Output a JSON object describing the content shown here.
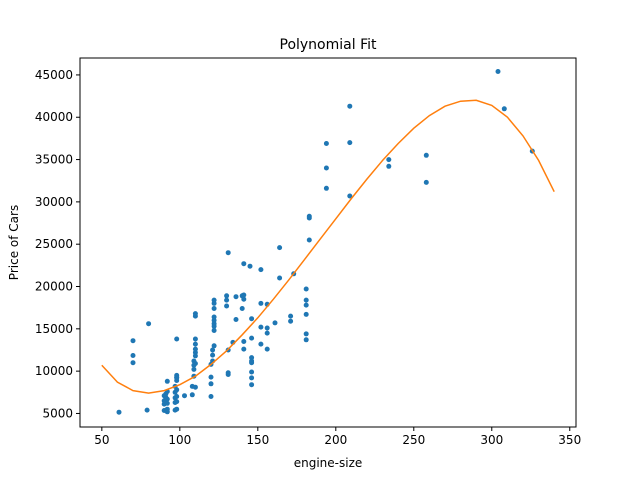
{
  "chart_data": {
    "type": "scatter",
    "title": "Polynomial Fit",
    "xlabel": "engine-size",
    "ylabel": "Price of Cars",
    "xlim": [
      36,
      354
    ],
    "ylim": [
      3400,
      47000
    ],
    "xticks": [
      50,
      100,
      150,
      200,
      250,
      300,
      350
    ],
    "yticks": [
      5000,
      10000,
      15000,
      20000,
      25000,
      30000,
      35000,
      40000,
      45000
    ],
    "grid": false,
    "legend": "none",
    "colors": {
      "points": "#1f77b4",
      "fit": "#ff7f0e"
    },
    "series": [
      {
        "kind": "points",
        "x": [
          61,
          70,
          70,
          70,
          79,
          80,
          90,
          90,
          90,
          90,
          91,
          91,
          92,
          92,
          92,
          92,
          92,
          92,
          97,
          97,
          97,
          97,
          97,
          98,
          98,
          98,
          98,
          98,
          98,
          98,
          98,
          98,
          103,
          108,
          108,
          109,
          109,
          109,
          109,
          110,
          110,
          110,
          110,
          110,
          110,
          110,
          110,
          110,
          120,
          120,
          120,
          120,
          121,
          121,
          121,
          122,
          122,
          122,
          122,
          122,
          122,
          122,
          122,
          122,
          130,
          130,
          130,
          131,
          131,
          131,
          131,
          134,
          136,
          136,
          140,
          140,
          141,
          141,
          141,
          141,
          141,
          145,
          146,
          146,
          146,
          146,
          146,
          146,
          146,
          146,
          152,
          152,
          152,
          152,
          156,
          156,
          156,
          156,
          161,
          164,
          164,
          171,
          171,
          173,
          181,
          181,
          181,
          181,
          181,
          181,
          183,
          183,
          183,
          194,
          194,
          194,
          209,
          209,
          209,
          234,
          234,
          258,
          258,
          304,
          308,
          326
        ],
        "y": [
          5150,
          13600,
          11850,
          11000,
          5400,
          15600,
          5350,
          6100,
          6500,
          7100,
          6900,
          7300,
          5200,
          5500,
          6200,
          6700,
          7600,
          8800,
          5400,
          6300,
          6850,
          7500,
          8200,
          5500,
          6400,
          7000,
          7800,
          8900,
          9200,
          9500,
          9300,
          13800,
          7100,
          7200,
          8200,
          9400,
          10200,
          10700,
          11200,
          10900,
          11800,
          12200,
          12600,
          13200,
          13800,
          16500,
          16800,
          8100,
          7000,
          8500,
          9300,
          10800,
          11200,
          11900,
          12500,
          14800,
          15600,
          16400,
          17400,
          18400,
          18000,
          16000,
          15300,
          13000,
          18900,
          18400,
          17700,
          24000,
          9600,
          9800,
          12500,
          13400,
          18800,
          16100,
          17400,
          18900,
          18500,
          19000,
          22700,
          13500,
          12600,
          22400,
          11000,
          11200,
          11600,
          8400,
          9200,
          9900,
          13900,
          16200,
          15200,
          13200,
          18000,
          22000,
          12600,
          14500,
          15100,
          17900,
          15700,
          21000,
          24600,
          16500,
          15900,
          21500,
          13700,
          14400,
          16700,
          17800,
          18400,
          19700,
          25500,
          28100,
          28300,
          31600,
          34000,
          36900,
          37000,
          41300,
          30700,
          35000,
          34200,
          35500,
          32300,
          45400,
          41000,
          36000
        ]
      },
      {
        "kind": "fit",
        "x": [
          50,
          60,
          70,
          80,
          90,
          100,
          110,
          120,
          130,
          140,
          150,
          160,
          170,
          180,
          190,
          200,
          210,
          220,
          230,
          240,
          250,
          260,
          270,
          280,
          290,
          300,
          310,
          320,
          330,
          340
        ],
        "y": [
          10700,
          8700,
          7700,
          7400,
          7700,
          8400,
          9400,
          10800,
          12400,
          14300,
          16300,
          18500,
          20800,
          23200,
          25600,
          28000,
          30400,
          32700,
          34900,
          36900,
          38700,
          40200,
          41300,
          41900,
          42000,
          41400,
          40000,
          37800,
          34900,
          31200
        ]
      }
    ]
  }
}
